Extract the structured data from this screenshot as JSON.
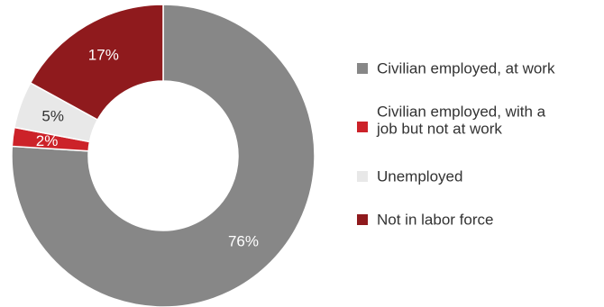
{
  "chart_data": {
    "type": "pie",
    "donut": true,
    "categories": [
      "Civilian employed, at work",
      "Civilian employed, with a job but not at work",
      "Unemployed",
      "Not in labor force"
    ],
    "values": [
      76,
      2,
      5,
      17
    ],
    "value_labels": [
      "76%",
      "2%",
      "5%",
      "17%"
    ],
    "colors": [
      "#878787",
      "#cc2229",
      "#e8e8e8",
      "#8f1a1d"
    ],
    "label_colors": [
      "#ffffff",
      "#ffffff",
      "#333333",
      "#ffffff"
    ],
    "legend": {
      "position": "right",
      "entries": [
        {
          "lines": [
            "Civilian employed, at work"
          ]
        },
        {
          "lines": [
            "Civilian employed, with a",
            "job but not at work"
          ]
        },
        {
          "lines": [
            "Unemployed"
          ]
        },
        {
          "lines": [
            "Not in labor force"
          ]
        }
      ]
    },
    "start": "top",
    "direction": "clockwise"
  }
}
